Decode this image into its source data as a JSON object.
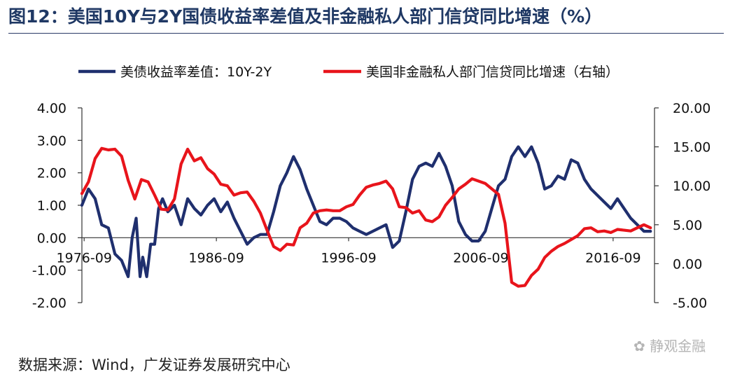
{
  "title": "图12：美国10Y与2Y国债收益率差值及非金融私人部门信贷同比增速（%）",
  "source": "数据来源：Wind，广发证券发展研究中心",
  "watermark": "静观金融",
  "colors": {
    "series1": "#1f2f6e",
    "series2": "#e8141b",
    "title": "#1f3864"
  },
  "chart_data": {
    "type": "line",
    "legend_placement": "top",
    "grid": false,
    "x_ticks": [
      "1976-09",
      "1986-09",
      "1996-09",
      "2006-09",
      "2016-09"
    ],
    "xlim": [
      1976.5,
      2019.8
    ],
    "y_left": {
      "ticks": [
        "4.00",
        "3.00",
        "2.00",
        "1.00",
        "0.00",
        "-1.00",
        "-2.00"
      ],
      "ylim": [
        -2,
        4
      ]
    },
    "y_right": {
      "ticks": [
        "20.00",
        "15.00",
        "10.00",
        "5.00",
        "0.00",
        "-5.00"
      ],
      "ylim": [
        -5,
        20
      ]
    },
    "series": [
      {
        "name": "美债收益率差值：10Y-2Y",
        "axis": "left",
        "x": [
          1976.5,
          1977.0,
          1977.5,
          1978.0,
          1978.5,
          1979.0,
          1979.5,
          1980.0,
          1980.3,
          1980.6,
          1980.9,
          1981.1,
          1981.4,
          1981.7,
          1982.0,
          1982.3,
          1982.6,
          1983.0,
          1983.5,
          1984.0,
          1984.5,
          1985.0,
          1985.5,
          1986.0,
          1986.5,
          1987.0,
          1987.5,
          1988.0,
          1988.5,
          1989.0,
          1989.5,
          1990.0,
          1990.5,
          1991.0,
          1991.5,
          1992.0,
          1992.5,
          1993.0,
          1993.5,
          1994.0,
          1994.5,
          1995.0,
          1995.5,
          1996.0,
          1996.5,
          1997.0,
          1997.5,
          1998.0,
          1998.5,
          1999.0,
          1999.5,
          2000.0,
          2000.5,
          2001.0,
          2001.5,
          2002.0,
          2002.5,
          2003.0,
          2003.5,
          2004.0,
          2004.5,
          2005.0,
          2005.5,
          2006.0,
          2006.5,
          2007.0,
          2007.5,
          2008.0,
          2008.5,
          2009.0,
          2009.5,
          2010.0,
          2010.5,
          2011.0,
          2011.5,
          2012.0,
          2012.5,
          2013.0,
          2013.5,
          2014.0,
          2014.5,
          2015.0,
          2015.5,
          2016.0,
          2016.5,
          2017.0,
          2017.5,
          2018.0,
          2018.5,
          2019.0,
          2019.5
        ],
        "y": [
          1.0,
          1.5,
          1.2,
          0.4,
          0.3,
          -0.5,
          -0.7,
          -1.2,
          0.0,
          0.6,
          -1.2,
          -0.6,
          -1.2,
          -0.2,
          -0.2,
          0.9,
          1.2,
          0.8,
          1.0,
          0.4,
          1.2,
          0.9,
          0.7,
          1.0,
          1.2,
          0.8,
          1.1,
          0.6,
          0.2,
          -0.2,
          0.0,
          0.1,
          0.1,
          0.8,
          1.6,
          2.0,
          2.5,
          2.1,
          1.5,
          1.0,
          0.5,
          0.4,
          0.6,
          0.6,
          0.5,
          0.3,
          0.2,
          0.1,
          0.2,
          0.3,
          0.4,
          -0.3,
          -0.1,
          0.8,
          1.8,
          2.2,
          2.3,
          2.2,
          2.6,
          2.2,
          1.6,
          0.5,
          0.1,
          -0.1,
          -0.1,
          0.2,
          0.9,
          1.6,
          1.8,
          2.5,
          2.8,
          2.5,
          2.8,
          2.3,
          1.5,
          1.6,
          1.9,
          1.8,
          2.4,
          2.3,
          1.8,
          1.5,
          1.3,
          1.1,
          0.9,
          1.2,
          0.9,
          0.6,
          0.4,
          0.2,
          0.2
        ]
      },
      {
        "name": "美国非金融私人部门信贷同比增速（右轴）",
        "axis": "right",
        "x": [
          1976.5,
          1977.0,
          1977.5,
          1978.0,
          1978.5,
          1979.0,
          1979.5,
          1980.0,
          1980.5,
          1981.0,
          1981.5,
          1982.0,
          1982.5,
          1983.0,
          1983.5,
          1984.0,
          1984.5,
          1985.0,
          1985.5,
          1986.0,
          1986.5,
          1987.0,
          1987.5,
          1988.0,
          1988.5,
          1989.0,
          1989.5,
          1990.0,
          1990.5,
          1991.0,
          1991.5,
          1992.0,
          1992.5,
          1993.0,
          1993.5,
          1994.0,
          1994.5,
          1995.0,
          1995.5,
          1996.0,
          1996.5,
          1997.0,
          1997.5,
          1998.0,
          1998.5,
          1999.0,
          1999.5,
          2000.0,
          2000.5,
          2001.0,
          2001.5,
          2002.0,
          2002.5,
          2003.0,
          2003.5,
          2004.0,
          2004.5,
          2005.0,
          2005.5,
          2006.0,
          2006.5,
          2007.0,
          2007.5,
          2008.0,
          2008.5,
          2009.0,
          2009.5,
          2010.0,
          2010.5,
          2011.0,
          2011.5,
          2012.0,
          2012.5,
          2013.0,
          2013.5,
          2014.0,
          2014.5,
          2015.0,
          2015.5,
          2016.0,
          2016.5,
          2017.0,
          2017.5,
          2018.0,
          2018.5,
          2019.0,
          2019.5
        ],
        "y": [
          9.0,
          10.5,
          13.5,
          14.8,
          14.6,
          14.7,
          13.8,
          10.7,
          8.3,
          10.8,
          10.5,
          8.8,
          7.0,
          6.9,
          8.3,
          12.8,
          14.7,
          13.2,
          13.6,
          12.2,
          11.5,
          10.2,
          10.0,
          8.8,
          9.1,
          9.2,
          8.0,
          6.5,
          4.3,
          2.2,
          1.7,
          2.5,
          2.4,
          4.6,
          5.2,
          6.5,
          6.8,
          6.9,
          6.8,
          6.8,
          7.3,
          7.6,
          8.8,
          9.8,
          10.1,
          10.3,
          10.6,
          9.6,
          7.3,
          7.2,
          6.5,
          6.8,
          5.6,
          5.4,
          6.0,
          7.5,
          8.5,
          9.6,
          10.2,
          10.9,
          10.6,
          10.3,
          9.6,
          8.9,
          5.2,
          -2.4,
          -2.9,
          -2.8,
          -1.5,
          -0.7,
          0.8,
          1.6,
          2.2,
          2.6,
          3.1,
          3.6,
          4.5,
          4.6,
          4.1,
          4.2,
          4.0,
          4.4,
          4.3,
          4.2,
          4.6,
          5.0,
          4.6
        ]
      }
    ]
  }
}
